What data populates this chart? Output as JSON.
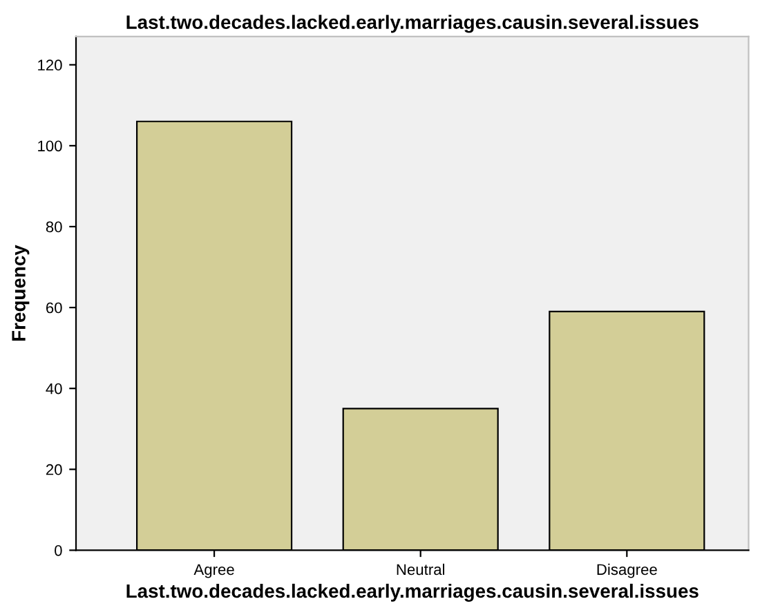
{
  "chart_data": {
    "type": "bar",
    "title": "Last.two.decades.lacked.early.marriages.causin.several.issues",
    "xlabel": "Last.two.decades.lacked.early.marriages.causin.several.issues",
    "ylabel": "Frequency",
    "categories": [
      "Agree",
      "Neutral",
      "Disagree"
    ],
    "values": [
      106,
      35,
      59
    ],
    "color": "#d3ce97",
    "ylim": [
      0,
      127
    ],
    "yticks": [
      0,
      20,
      40,
      60,
      80,
      100,
      120
    ],
    "grid": false,
    "legend": false
  }
}
